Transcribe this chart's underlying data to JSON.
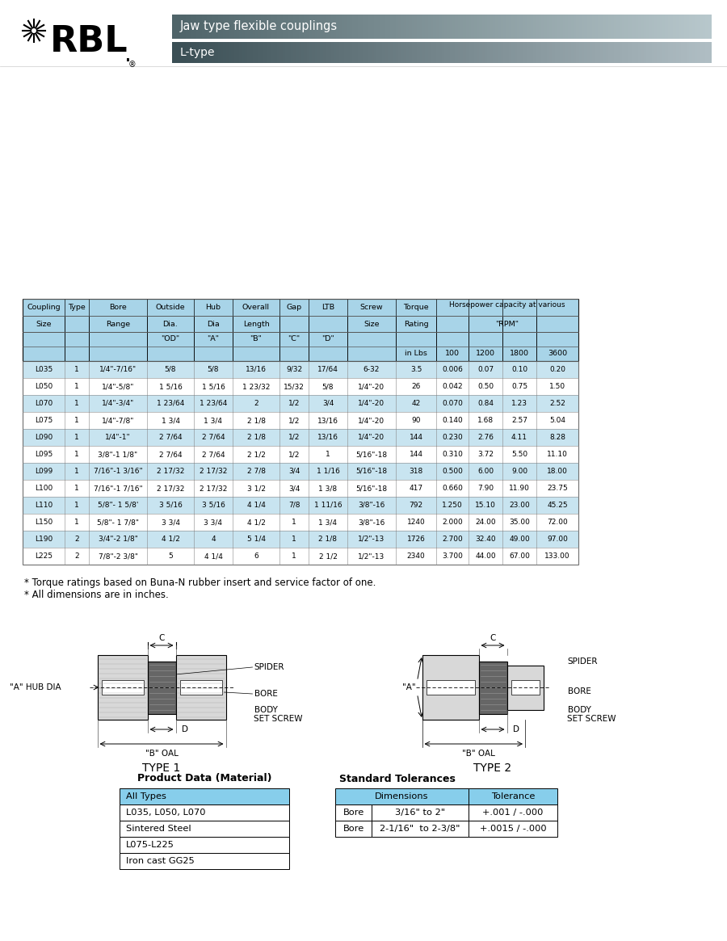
{
  "title1": "Jaw type flexible couplings",
  "title2": "L-type",
  "rows": [
    [
      "L035",
      "1",
      "1/4\"-7/16\"",
      "5/8",
      "5/8",
      "13/16",
      "9/32",
      "17/64",
      "6-32",
      "3.5",
      "0.006",
      "0.07",
      "0.10",
      "0.20"
    ],
    [
      "L050",
      "1",
      "1/4\"-5/8\"",
      "1 5/16",
      "1 5/16",
      "1 23/32",
      "15/32",
      "5/8",
      "1/4\"-20",
      "26",
      "0.042",
      "0.50",
      "0.75",
      "1.50"
    ],
    [
      "L070",
      "1",
      "1/4\"-3/4\"",
      "1 23/64",
      "1 23/64",
      "2",
      "1/2",
      "3/4",
      "1/4\"-20",
      "42",
      "0.070",
      "0.84",
      "1.23",
      "2.52"
    ],
    [
      "L075",
      "1",
      "1/4\"-7/8\"",
      "1 3/4",
      "1 3/4",
      "2 1/8",
      "1/2",
      "13/16",
      "1/4\"-20",
      "90",
      "0.140",
      "1.68",
      "2.57",
      "5.04"
    ],
    [
      "L090",
      "1",
      "1/4\"-1\"",
      "2 7/64",
      "2 7/64",
      "2 1/8",
      "1/2",
      "13/16",
      "1/4\"-20",
      "144",
      "0.230",
      "2.76",
      "4.11",
      "8.28"
    ],
    [
      "L095",
      "1",
      "3/8\"-1 1/8\"",
      "2 7/64",
      "2 7/64",
      "2 1/2",
      "1/2",
      "1",
      "5/16\"-18",
      "144",
      "0.310",
      "3.72",
      "5.50",
      "11.10"
    ],
    [
      "L099",
      "1",
      "7/16\"-1 3/16\"",
      "2 17/32",
      "2 17/32",
      "2 7/8",
      "3/4",
      "1 1/16",
      "5/16\"-18",
      "318",
      "0.500",
      "6.00",
      "9.00",
      "18.00"
    ],
    [
      "L100",
      "1",
      "7/16\"-1 7/16\"",
      "2 17/32",
      "2 17/32",
      "3 1/2",
      "3/4",
      "1 3/8",
      "5/16\"-18",
      "417",
      "0.660",
      "7.90",
      "11.90",
      "23.75"
    ],
    [
      "L110",
      "1",
      "5/8\"- 1 5/8'",
      "3 5/16",
      "3 5/16",
      "4 1/4",
      "7/8",
      "1 11/16",
      "3/8\"-16",
      "792",
      "1.250",
      "15.10",
      "23.00",
      "45.25"
    ],
    [
      "L150",
      "1",
      "5/8\"- 1 7/8\"",
      "3 3/4",
      "3 3/4",
      "4 1/2",
      "1",
      "1 3/4",
      "3/8\"-16",
      "1240",
      "2.000",
      "24.00",
      "35.00",
      "72.00"
    ],
    [
      "L190",
      "2",
      "3/4\"-2 1/8\"",
      "4 1/2",
      "4",
      "5 1/4",
      "1",
      "2 1/8",
      "1/2\"-13",
      "1726",
      "2.700",
      "32.40",
      "49.00",
      "97.00"
    ],
    [
      "L225",
      "2",
      "7/8\"-2 3/8\"",
      "5",
      "4 1/4",
      "6",
      "1",
      "2 1/2",
      "1/2\"-13",
      "2340",
      "3.700",
      "44.00",
      "67.00",
      "133.00"
    ]
  ],
  "footnotes": [
    "* Torque ratings based on Buna-N rubber insert and service factor of one.",
    "* All dimensions are in inches."
  ],
  "product_data_title": "Product Data (Material)",
  "product_data_rows": [
    [
      "All Types",
      true
    ],
    [
      "L035, L050, L070",
      false
    ],
    [
      "Sintered Steel",
      false
    ],
    [
      "L075-L225",
      false
    ],
    [
      "Iron cast GG25",
      false
    ]
  ],
  "std_tol_title": "Standard Tolerances",
  "std_tol_rows": [
    [
      "Bore",
      "3/16\" to 2\"",
      "+.001 / -.000"
    ],
    [
      "Bore",
      "2-1/16\"  to 2-3/8\"",
      "+.0015 / -.000"
    ]
  ],
  "header_dark": "#4e6368",
  "table_header_blue": "#a8d4e8",
  "row_blue": "#c8e4f0",
  "row_white": "#ffffff"
}
